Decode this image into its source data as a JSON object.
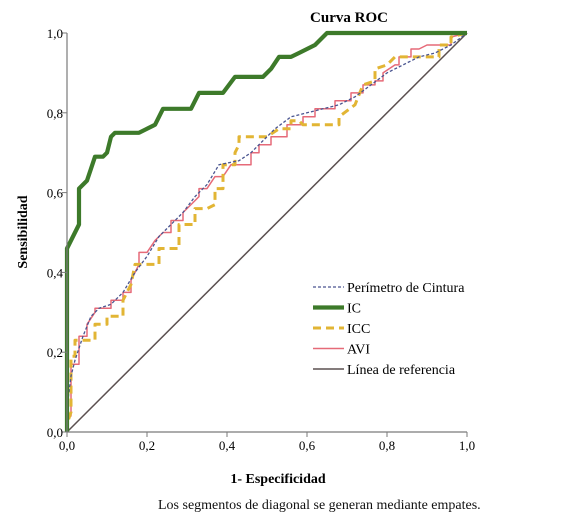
{
  "chart_data": {
    "type": "line",
    "title": "Curva ROC",
    "xlabel": "1- Especificidad",
    "ylabel": "Sensibilidad",
    "xlim": [
      0,
      1
    ],
    "ylim": [
      0,
      1
    ],
    "xticks": [
      "0,0",
      "0,2",
      "0,4",
      "0,6",
      "0,8",
      "1,0"
    ],
    "yticks": [
      "0,0",
      "0,2",
      "0,4",
      "0,6",
      "0,8",
      "1,0"
    ],
    "xtick_values": [
      0,
      0.2,
      0.4,
      0.6,
      0.8,
      1.0
    ],
    "ytick_values": [
      0,
      0.2,
      0.4,
      0.6,
      0.8,
      1.0
    ],
    "grid": false,
    "legend_position": "bottom-right",
    "series": [
      {
        "name": "Perímetro de Cintura",
        "color": "#4a5590",
        "style": "dashed-thin",
        "points": [
          [
            0,
            0
          ],
          [
            0,
            0.06
          ],
          [
            0.01,
            0.14
          ],
          [
            0.02,
            0.18
          ],
          [
            0.04,
            0.24
          ],
          [
            0.06,
            0.29
          ],
          [
            0.08,
            0.31
          ],
          [
            0.11,
            0.32
          ],
          [
            0.14,
            0.35
          ],
          [
            0.17,
            0.4
          ],
          [
            0.2,
            0.44
          ],
          [
            0.23,
            0.49
          ],
          [
            0.26,
            0.52
          ],
          [
            0.29,
            0.55
          ],
          [
            0.32,
            0.59
          ],
          [
            0.35,
            0.62
          ],
          [
            0.38,
            0.67
          ],
          [
            0.43,
            0.68
          ],
          [
            0.46,
            0.7
          ],
          [
            0.49,
            0.73
          ],
          [
            0.52,
            0.76
          ],
          [
            0.56,
            0.79
          ],
          [
            0.6,
            0.8
          ],
          [
            0.64,
            0.81
          ],
          [
            0.68,
            0.82
          ],
          [
            0.72,
            0.84
          ],
          [
            0.76,
            0.87
          ],
          [
            0.8,
            0.9
          ],
          [
            0.84,
            0.92
          ],
          [
            0.88,
            0.94
          ],
          [
            0.92,
            0.95
          ],
          [
            0.96,
            0.97
          ],
          [
            1,
            1
          ]
        ]
      },
      {
        "name": "IC",
        "color": "#3d7a2a",
        "style": "solid-thick",
        "points": [
          [
            0,
            0
          ],
          [
            0,
            0.46
          ],
          [
            0.01,
            0.48
          ],
          [
            0.02,
            0.5
          ],
          [
            0.03,
            0.52
          ],
          [
            0.03,
            0.61
          ],
          [
            0.05,
            0.63
          ],
          [
            0.06,
            0.66
          ],
          [
            0.07,
            0.69
          ],
          [
            0.09,
            0.69
          ],
          [
            0.1,
            0.7
          ],
          [
            0.11,
            0.74
          ],
          [
            0.12,
            0.75
          ],
          [
            0.18,
            0.75
          ],
          [
            0.2,
            0.76
          ],
          [
            0.22,
            0.77
          ],
          [
            0.23,
            0.79
          ],
          [
            0.24,
            0.81
          ],
          [
            0.31,
            0.81
          ],
          [
            0.33,
            0.85
          ],
          [
            0.39,
            0.85
          ],
          [
            0.42,
            0.89
          ],
          [
            0.49,
            0.89
          ],
          [
            0.51,
            0.91
          ],
          [
            0.53,
            0.94
          ],
          [
            0.56,
            0.94
          ],
          [
            0.58,
            0.95
          ],
          [
            0.6,
            0.96
          ],
          [
            0.62,
            0.97
          ],
          [
            0.64,
            0.99
          ],
          [
            0.65,
            1.0
          ],
          [
            1,
            1
          ]
        ]
      },
      {
        "name": "ICC",
        "color": "#e2b534",
        "style": "dashed-thick",
        "points": [
          [
            0,
            0
          ],
          [
            0,
            0.02
          ],
          [
            0.01,
            0.05
          ],
          [
            0.01,
            0.19
          ],
          [
            0.02,
            0.19
          ],
          [
            0.02,
            0.23
          ],
          [
            0.07,
            0.23
          ],
          [
            0.07,
            0.27
          ],
          [
            0.1,
            0.27
          ],
          [
            0.1,
            0.29
          ],
          [
            0.14,
            0.29
          ],
          [
            0.14,
            0.33
          ],
          [
            0.16,
            0.37
          ],
          [
            0.17,
            0.42
          ],
          [
            0.23,
            0.42
          ],
          [
            0.23,
            0.46
          ],
          [
            0.28,
            0.46
          ],
          [
            0.28,
            0.52
          ],
          [
            0.32,
            0.52
          ],
          [
            0.32,
            0.56
          ],
          [
            0.35,
            0.56
          ],
          [
            0.37,
            0.57
          ],
          [
            0.37,
            0.61
          ],
          [
            0.39,
            0.61
          ],
          [
            0.39,
            0.67
          ],
          [
            0.42,
            0.67
          ],
          [
            0.42,
            0.7
          ],
          [
            0.43,
            0.72
          ],
          [
            0.43,
            0.74
          ],
          [
            0.5,
            0.74
          ],
          [
            0.53,
            0.76
          ],
          [
            0.56,
            0.76
          ],
          [
            0.56,
            0.78
          ],
          [
            0.58,
            0.78
          ],
          [
            0.59,
            0.77
          ],
          [
            0.68,
            0.77
          ],
          [
            0.68,
            0.79
          ],
          [
            0.72,
            0.82
          ],
          [
            0.74,
            0.87
          ],
          [
            0.77,
            0.88
          ],
          [
            0.77,
            0.91
          ],
          [
            0.8,
            0.92
          ],
          [
            0.82,
            0.94
          ],
          [
            0.93,
            0.94
          ],
          [
            0.93,
            0.97
          ],
          [
            0.96,
            0.97
          ],
          [
            0.96,
            0.99
          ],
          [
            1,
            1
          ]
        ]
      },
      {
        "name": "AVI",
        "color": "#e66a78",
        "style": "solid-thin",
        "points": [
          [
            0,
            0
          ],
          [
            0,
            0.04
          ],
          [
            0.01,
            0.04
          ],
          [
            0.01,
            0.17
          ],
          [
            0.03,
            0.17
          ],
          [
            0.03,
            0.24
          ],
          [
            0.05,
            0.24
          ],
          [
            0.05,
            0.27
          ],
          [
            0.07,
            0.3
          ],
          [
            0.07,
            0.31
          ],
          [
            0.11,
            0.31
          ],
          [
            0.11,
            0.33
          ],
          [
            0.14,
            0.33
          ],
          [
            0.14,
            0.35
          ],
          [
            0.16,
            0.35
          ],
          [
            0.16,
            0.38
          ],
          [
            0.18,
            0.42
          ],
          [
            0.18,
            0.45
          ],
          [
            0.2,
            0.45
          ],
          [
            0.22,
            0.48
          ],
          [
            0.24,
            0.5
          ],
          [
            0.26,
            0.5
          ],
          [
            0.26,
            0.53
          ],
          [
            0.29,
            0.53
          ],
          [
            0.29,
            0.55
          ],
          [
            0.31,
            0.57
          ],
          [
            0.33,
            0.59
          ],
          [
            0.33,
            0.61
          ],
          [
            0.35,
            0.61
          ],
          [
            0.37,
            0.64
          ],
          [
            0.39,
            0.64
          ],
          [
            0.41,
            0.67
          ],
          [
            0.46,
            0.67
          ],
          [
            0.46,
            0.7
          ],
          [
            0.48,
            0.7
          ],
          [
            0.48,
            0.72
          ],
          [
            0.51,
            0.72
          ],
          [
            0.51,
            0.74
          ],
          [
            0.55,
            0.74
          ],
          [
            0.55,
            0.77
          ],
          [
            0.59,
            0.77
          ],
          [
            0.59,
            0.79
          ],
          [
            0.62,
            0.79
          ],
          [
            0.62,
            0.81
          ],
          [
            0.67,
            0.81
          ],
          [
            0.67,
            0.83
          ],
          [
            0.71,
            0.83
          ],
          [
            0.71,
            0.85
          ],
          [
            0.74,
            0.85
          ],
          [
            0.74,
            0.87
          ],
          [
            0.77,
            0.87
          ],
          [
            0.77,
            0.88
          ],
          [
            0.79,
            0.88
          ],
          [
            0.79,
            0.9
          ],
          [
            0.82,
            0.92
          ],
          [
            0.83,
            0.92
          ],
          [
            0.83,
            0.94
          ],
          [
            0.86,
            0.94
          ],
          [
            0.86,
            0.96
          ],
          [
            0.88,
            0.96
          ],
          [
            0.9,
            0.97
          ],
          [
            0.96,
            0.97
          ],
          [
            0.96,
            0.99
          ],
          [
            1,
            1
          ]
        ]
      },
      {
        "name": "Línea de referencia",
        "color": "#5b5050",
        "style": "solid-thin",
        "points": [
          [
            0,
            0
          ],
          [
            1,
            1
          ]
        ]
      }
    ],
    "footnote": "Los segmentos de diagonal se generan mediante empates."
  }
}
